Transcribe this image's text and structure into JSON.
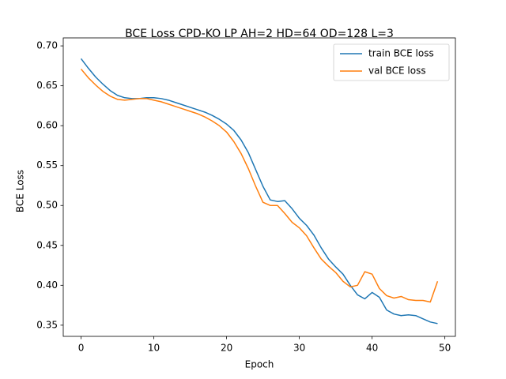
{
  "chart_data": {
    "type": "line",
    "title": "BCE Loss CPD-KO LP AH=2 HD=64 OD=128 L=3",
    "xlabel": "Epoch",
    "ylabel": "BCE Loss",
    "x": [
      0,
      1,
      2,
      3,
      4,
      5,
      6,
      7,
      8,
      9,
      10,
      11,
      12,
      13,
      14,
      15,
      16,
      17,
      18,
      19,
      20,
      21,
      22,
      23,
      24,
      25,
      26,
      27,
      28,
      29,
      30,
      31,
      32,
      33,
      34,
      35,
      36,
      37,
      38,
      39,
      40,
      41,
      42,
      43,
      44,
      45,
      46,
      47,
      48,
      49
    ],
    "series": [
      {
        "name": "train BCE loss",
        "color": "#1f77b4",
        "values": [
          0.684,
          0.672,
          0.661,
          0.652,
          0.644,
          0.638,
          0.635,
          0.634,
          0.634,
          0.635,
          0.635,
          0.634,
          0.632,
          0.629,
          0.626,
          0.623,
          0.62,
          0.617,
          0.613,
          0.608,
          0.602,
          0.594,
          0.582,
          0.566,
          0.545,
          0.524,
          0.507,
          0.505,
          0.506,
          0.496,
          0.484,
          0.475,
          0.463,
          0.447,
          0.433,
          0.423,
          0.414,
          0.4,
          0.388,
          0.383,
          0.391,
          0.385,
          0.369,
          0.364,
          0.362,
          0.363,
          0.362,
          0.358,
          0.354,
          0.352
        ]
      },
      {
        "name": "val BCE loss",
        "color": "#ff7f0e",
        "values": [
          0.671,
          0.66,
          0.651,
          0.643,
          0.637,
          0.633,
          0.632,
          0.633,
          0.634,
          0.634,
          0.632,
          0.63,
          0.627,
          0.624,
          0.621,
          0.618,
          0.615,
          0.611,
          0.606,
          0.6,
          0.592,
          0.58,
          0.565,
          0.546,
          0.524,
          0.504,
          0.5,
          0.5,
          0.49,
          0.479,
          0.472,
          0.462,
          0.447,
          0.433,
          0.424,
          0.416,
          0.405,
          0.398,
          0.4,
          0.417,
          0.414,
          0.396,
          0.387,
          0.384,
          0.386,
          0.382,
          0.381,
          0.381,
          0.379,
          0.405
        ]
      }
    ],
    "xlim": [
      -2.45,
      51.45
    ],
    "xticks": [
      0,
      10,
      20,
      30,
      40,
      50
    ],
    "ylim": [
      0.336,
      0.71
    ],
    "yticks": [
      0.35,
      {
        "value": 0.4,
        "label": "0.40"
      },
      0.45,
      {
        "value": 0.5,
        "label": "0.50"
      },
      0.55,
      {
        "value": 0.6,
        "label": "0.60"
      },
      0.65,
      {
        "value": 0.7,
        "label": "0.70"
      }
    ],
    "legend": "upper right"
  }
}
